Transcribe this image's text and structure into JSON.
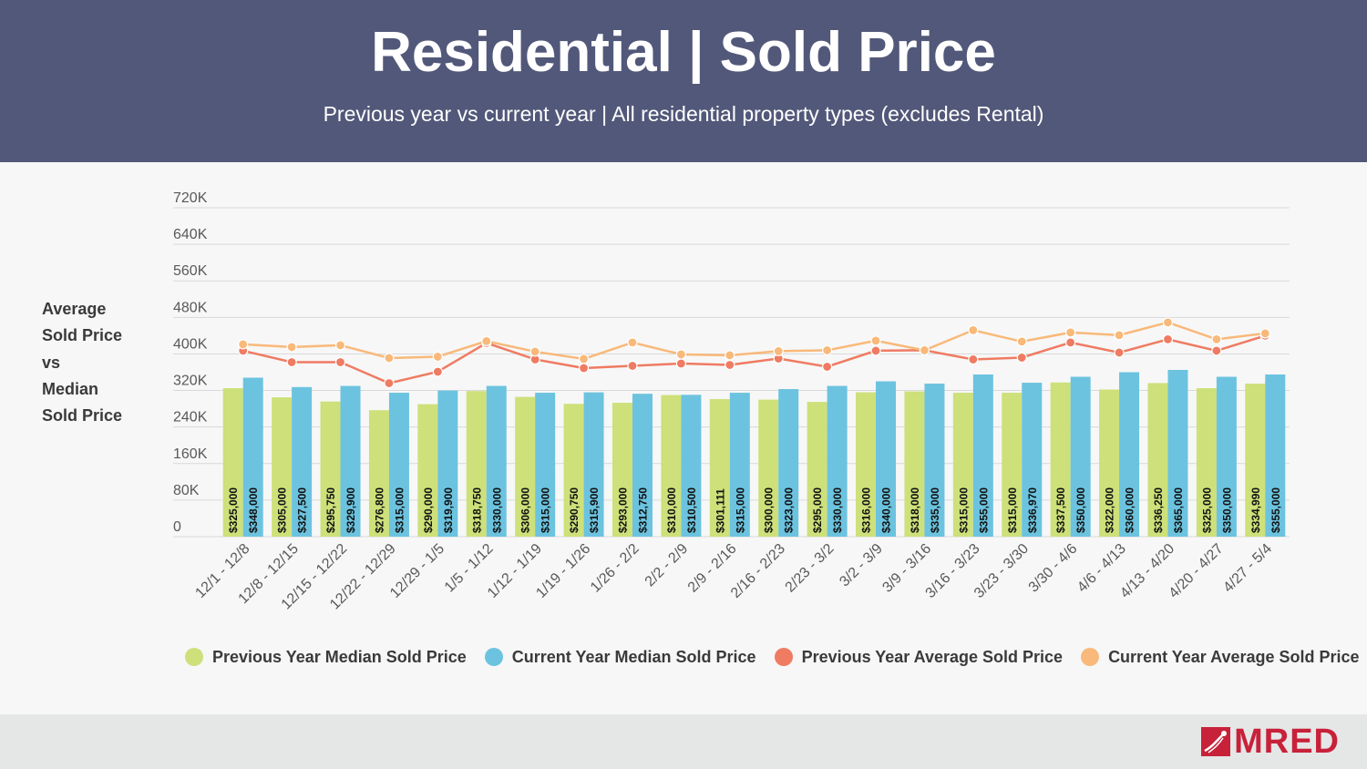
{
  "header": {
    "title": "Residential | Sold Price",
    "subtitle": "Previous year vs current year | All residential property types (excludes Rental)"
  },
  "y_axis_side_label": "Average\nSold Price\nvs\nMedian\nSold Price",
  "logo": {
    "text": "MRED"
  },
  "colors": {
    "header_bg": "#525879",
    "prev_median": "#cde07a",
    "curr_median": "#6cc3df",
    "prev_avg": "#ef7b62",
    "curr_avg": "#f8b97a",
    "brand": "#c8213a"
  },
  "chart_data": {
    "type": "bar",
    "title": "Residential | Sold Price",
    "subtitle": "Previous year vs current year | All residential property types (excludes Rental)",
    "ylabel": "Average Sold Price vs Median Sold Price",
    "xlabel": "",
    "ylim": [
      0,
      720000
    ],
    "yticks": [
      0,
      80000,
      160000,
      240000,
      320000,
      400000,
      480000,
      560000,
      640000,
      720000
    ],
    "ytick_labels": [
      "0",
      "80K",
      "160K",
      "240K",
      "320K",
      "400K",
      "480K",
      "560K",
      "640K",
      "720K"
    ],
    "grid": true,
    "legend_position": "bottom",
    "categories": [
      "12/1 - 12/8",
      "12/8 - 12/15",
      "12/15 - 12/22",
      "12/22 - 12/29",
      "12/29 - 1/5",
      "1/5 - 1/12",
      "1/12 - 1/19",
      "1/19 - 1/26",
      "1/26 - 2/2",
      "2/2 - 2/9",
      "2/9 - 2/16",
      "2/16 - 2/23",
      "2/23 - 3/2",
      "3/2 - 3/9",
      "3/9 - 3/16",
      "3/16 - 3/23",
      "3/23 - 3/30",
      "3/30 - 4/6",
      "4/6 - 4/13",
      "4/13 - 4/20",
      "4/20 - 4/27",
      "4/27 - 5/4"
    ],
    "series": [
      {
        "name": "Previous Year Median Sold Price",
        "kind": "bar",
        "values": [
          325000,
          305000,
          295750,
          276800,
          290000,
          318750,
          306000,
          290750,
          293000,
          310000,
          301111,
          300000,
          295000,
          316000,
          318000,
          315000,
          315000,
          337500,
          322000,
          336250,
          325000,
          334990
        ],
        "labels": [
          "$325,000",
          "$305,000",
          "$295,750",
          "$276,800",
          "$290,000",
          "$318,750",
          "$306,000",
          "$290,750",
          "$293,000",
          "$310,000",
          "$301,111",
          "$300,000",
          "$295,000",
          "$316,000",
          "$318,000",
          "$315,000",
          "$315,000",
          "$337,500",
          "$322,000",
          "$336,250",
          "$325,000",
          "$334,990"
        ]
      },
      {
        "name": "Current Year Median Sold Price",
        "kind": "bar",
        "values": [
          348000,
          327500,
          329900,
          315000,
          319900,
          330000,
          315000,
          315900,
          312750,
          310500,
          315000,
          323000,
          330000,
          340000,
          335000,
          355000,
          336970,
          350000,
          360000,
          365000,
          350000,
          355000
        ],
        "labels": [
          "$348,000",
          "$327,500",
          "$329,900",
          "$315,000",
          "$319,900",
          "$330,000",
          "$315,000",
          "$315,900",
          "$312,750",
          "$310,500",
          "$315,000",
          "$323,000",
          "$330,000",
          "$340,000",
          "$335,000",
          "$355,000",
          "$336,970",
          "$350,000",
          "$360,000",
          "$365,000",
          "$350,000",
          "$355,000"
        ]
      },
      {
        "name": "Previous Year Average Sold Price",
        "kind": "line",
        "values": [
          407000,
          382000,
          382000,
          336000,
          361000,
          424000,
          388000,
          369000,
          374000,
          379000,
          376000,
          390000,
          372000,
          407000,
          408000,
          388000,
          392000,
          425000,
          403000,
          432000,
          407000,
          440000
        ]
      },
      {
        "name": "Current Year Average Sold Price",
        "kind": "line",
        "values": [
          421000,
          415000,
          419000,
          391000,
          394000,
          428000,
          405000,
          389000,
          425000,
          399000,
          397000,
          406000,
          408000,
          429000,
          408000,
          452000,
          427000,
          447000,
          441000,
          469000,
          432000,
          445000
        ]
      }
    ]
  }
}
